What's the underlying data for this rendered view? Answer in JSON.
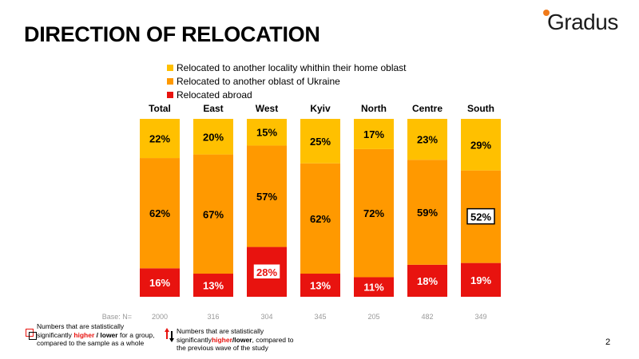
{
  "title": "DIRECTION OF RELOCATION",
  "logo": {
    "text": "Gradus"
  },
  "legend": [
    {
      "label": "Relocated to another locality whithin their home oblast",
      "color": "#FFC000"
    },
    {
      "label": "Relocated to another oblast of Ukraine",
      "color": "#FF9900"
    },
    {
      "label": "Relocated abroad",
      "color": "#E8130F"
    }
  ],
  "chart_data": {
    "type": "bar",
    "stacked": true,
    "categories": [
      "Total",
      "East",
      "West",
      "Kyiv",
      "North",
      "Centre",
      "South"
    ],
    "series": [
      {
        "name": "Relocated abroad",
        "color": "#E8130F",
        "values": [
          16,
          13,
          28,
          13,
          11,
          18,
          19
        ]
      },
      {
        "name": "Relocated to another oblast of Ukraine",
        "color": "#FF9900",
        "values": [
          62,
          67,
          57,
          62,
          72,
          59,
          52
        ]
      },
      {
        "name": "Relocated to another locality whithin their home oblast",
        "color": "#FFC000",
        "values": [
          22,
          20,
          15,
          25,
          17,
          23,
          29
        ]
      }
    ],
    "value_suffix": "%",
    "base_label": "Base: N=",
    "base": [
      "2000",
      "316",
      "304",
      "345",
      "205",
      "482",
      "349"
    ],
    "highlights": [
      {
        "category": "West",
        "series": "Relocated abroad",
        "type": "significantly higher",
        "box_color": "#E8130F",
        "label_fill": "#ffffff",
        "label_color": "#E8130F"
      },
      {
        "category": "South",
        "series": "Relocated to another oblast of Ukraine",
        "type": "significantly lower",
        "box_color": "#000000",
        "label_fill": "#ffffff",
        "label_color": "#000000"
      }
    ],
    "ylim": [
      0,
      100
    ]
  },
  "notes": {
    "note1_a": "Numbers that are statistically significantly ",
    "note1_higher": "higher",
    "note1_sep": " / ",
    "note1_lower": "lower",
    "note1_b": " for a group, compared to the sample as a whole",
    "note2_a": "Numbers that are statistically significantly",
    "note2_higher": "higher",
    "note2_sep": "/",
    "note2_lower": "lower",
    "note2_b": ", compared to the previous wave of the study"
  },
  "page_number": "2"
}
